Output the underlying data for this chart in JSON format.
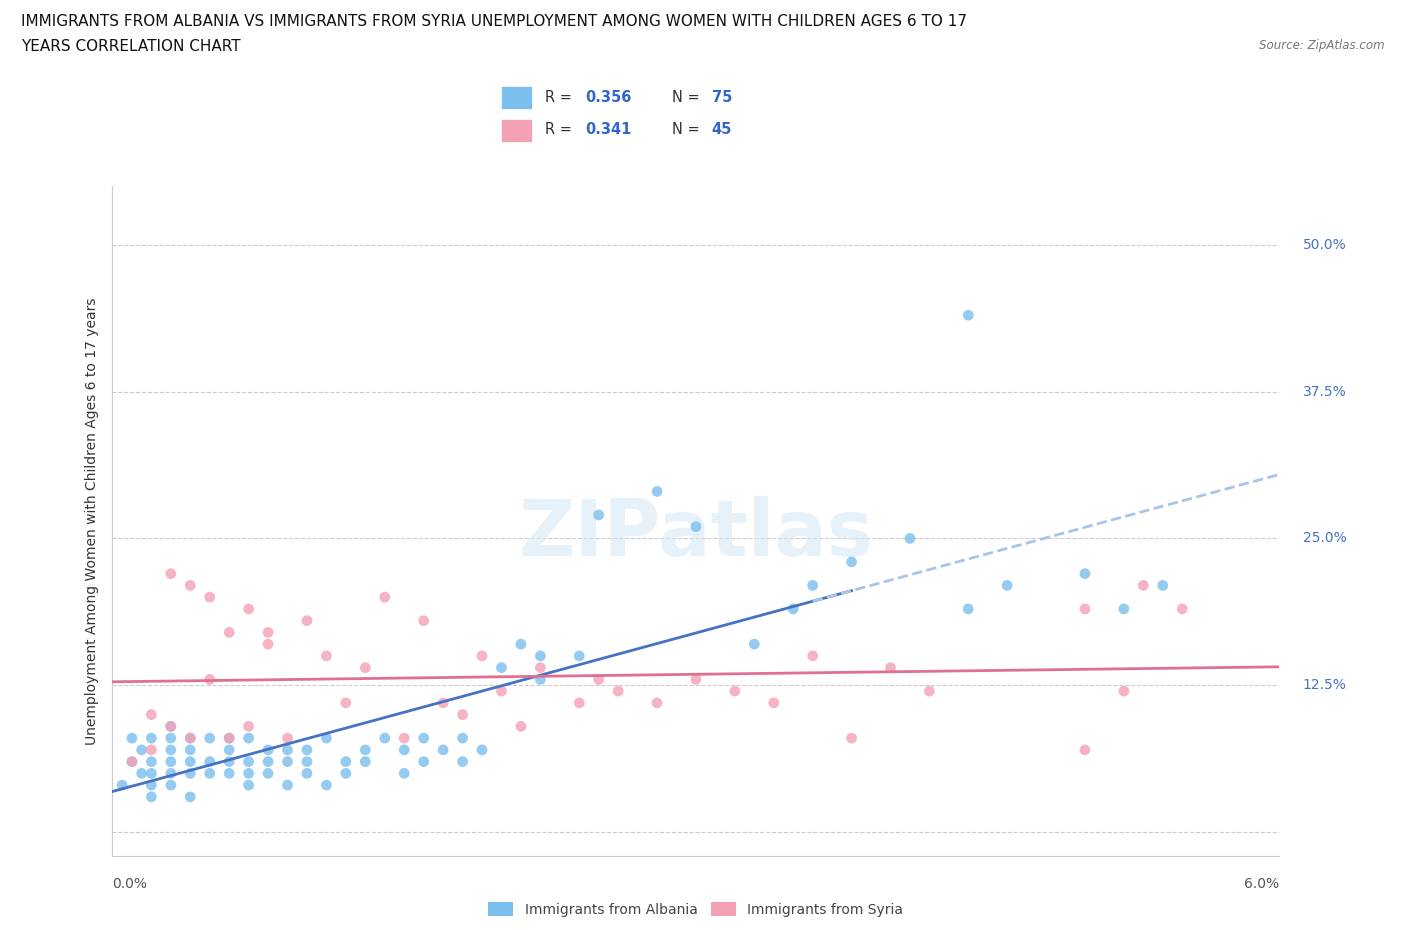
{
  "title_line1": "IMMIGRANTS FROM ALBANIA VS IMMIGRANTS FROM SYRIA UNEMPLOYMENT AMONG WOMEN WITH CHILDREN AGES 6 TO 17",
  "title_line2": "YEARS CORRELATION CHART",
  "source": "Source: ZipAtlas.com",
  "ylabel": "Unemployment Among Women with Children Ages 6 to 17 years",
  "r_albania": 0.356,
  "n_albania": 75,
  "r_syria": 0.341,
  "n_syria": 45,
  "color_albania": "#7bbfee",
  "color_syria": "#f4a0b5",
  "trendline_albania": "#4472c4",
  "trendline_syria": "#e07090",
  "trendline_dashed": "#aac4e8",
  "xlim": [
    0.0,
    0.06
  ],
  "ylim": [
    -0.02,
    0.55
  ],
  "yticks": [
    0.0,
    0.125,
    0.25,
    0.375,
    0.5
  ],
  "ytick_labels_right": [
    "",
    "12.5%",
    "25.0%",
    "37.5%",
    "50.0%"
  ],
  "watermark_text": "ZIPatlas",
  "legend_label1": "Immigrants from Albania",
  "legend_label2": "Immigrants from Syria",
  "albania_x": [
    0.0005,
    0.001,
    0.001,
    0.0015,
    0.0015,
    0.002,
    0.002,
    0.002,
    0.002,
    0.002,
    0.003,
    0.003,
    0.003,
    0.003,
    0.003,
    0.003,
    0.004,
    0.004,
    0.004,
    0.004,
    0.004,
    0.005,
    0.005,
    0.005,
    0.006,
    0.006,
    0.006,
    0.006,
    0.007,
    0.007,
    0.007,
    0.007,
    0.008,
    0.008,
    0.008,
    0.009,
    0.009,
    0.009,
    0.01,
    0.01,
    0.01,
    0.011,
    0.011,
    0.012,
    0.012,
    0.013,
    0.013,
    0.014,
    0.015,
    0.015,
    0.016,
    0.016,
    0.017,
    0.018,
    0.018,
    0.019,
    0.02,
    0.021,
    0.022,
    0.022,
    0.024,
    0.025,
    0.028,
    0.03,
    0.033,
    0.035,
    0.036,
    0.038,
    0.041,
    0.044,
    0.046,
    0.05,
    0.052,
    0.054,
    0.044
  ],
  "albania_y": [
    0.04,
    0.06,
    0.08,
    0.05,
    0.07,
    0.04,
    0.06,
    0.08,
    0.05,
    0.03,
    0.06,
    0.08,
    0.07,
    0.05,
    0.09,
    0.04,
    0.06,
    0.08,
    0.05,
    0.07,
    0.03,
    0.06,
    0.08,
    0.05,
    0.06,
    0.08,
    0.05,
    0.07,
    0.06,
    0.08,
    0.05,
    0.04,
    0.07,
    0.05,
    0.06,
    0.04,
    0.06,
    0.07,
    0.05,
    0.07,
    0.06,
    0.04,
    0.08,
    0.06,
    0.05,
    0.07,
    0.06,
    0.08,
    0.05,
    0.07,
    0.06,
    0.08,
    0.07,
    0.06,
    0.08,
    0.07,
    0.14,
    0.16,
    0.13,
    0.15,
    0.15,
    0.27,
    0.29,
    0.26,
    0.16,
    0.19,
    0.21,
    0.23,
    0.25,
    0.19,
    0.21,
    0.22,
    0.19,
    0.21,
    0.44
  ],
  "syria_x": [
    0.001,
    0.002,
    0.002,
    0.003,
    0.003,
    0.004,
    0.004,
    0.005,
    0.005,
    0.006,
    0.006,
    0.007,
    0.007,
    0.008,
    0.008,
    0.009,
    0.01,
    0.011,
    0.012,
    0.013,
    0.014,
    0.015,
    0.016,
    0.017,
    0.018,
    0.019,
    0.02,
    0.021,
    0.022,
    0.024,
    0.025,
    0.026,
    0.028,
    0.03,
    0.032,
    0.034,
    0.036,
    0.038,
    0.04,
    0.042,
    0.05,
    0.05,
    0.052,
    0.053,
    0.055
  ],
  "syria_y": [
    0.06,
    0.1,
    0.07,
    0.22,
    0.09,
    0.21,
    0.08,
    0.2,
    0.13,
    0.17,
    0.08,
    0.19,
    0.09,
    0.17,
    0.16,
    0.08,
    0.18,
    0.15,
    0.11,
    0.14,
    0.2,
    0.08,
    0.18,
    0.11,
    0.1,
    0.15,
    0.12,
    0.09,
    0.14,
    0.11,
    0.13,
    0.12,
    0.11,
    0.13,
    0.12,
    0.11,
    0.15,
    0.08,
    0.14,
    0.12,
    0.07,
    0.19,
    0.12,
    0.21,
    0.19
  ]
}
